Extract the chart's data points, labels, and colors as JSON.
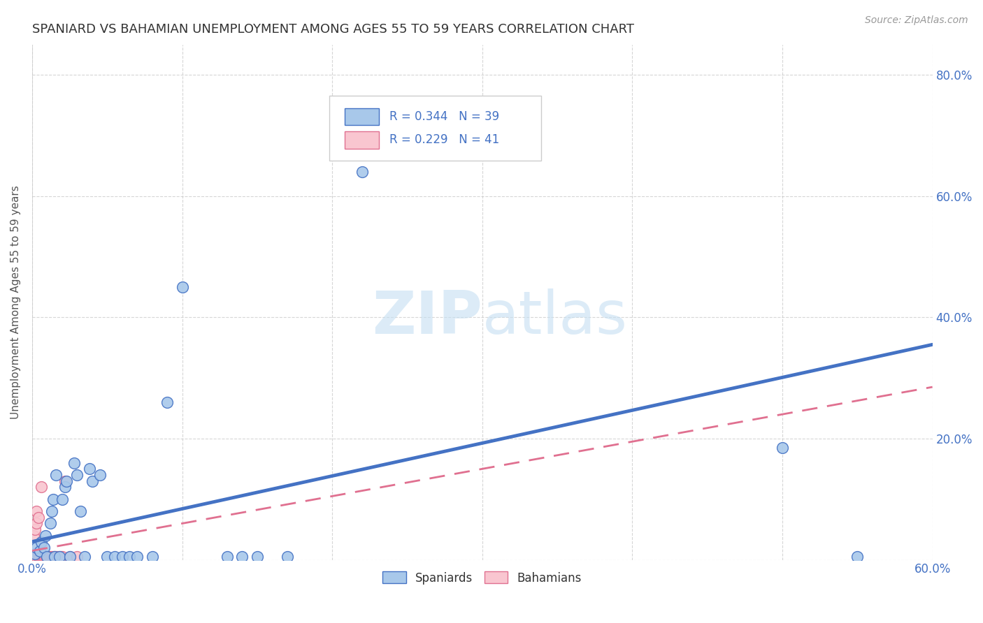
{
  "title": "SPANIARD VS BAHAMIAN UNEMPLOYMENT AMONG AGES 55 TO 59 YEARS CORRELATION CHART",
  "source": "Source: ZipAtlas.com",
  "ylabel": "Unemployment Among Ages 55 to 59 years",
  "xlim": [
    0.0,
    0.6
  ],
  "ylim": [
    0.0,
    0.85
  ],
  "xtick_positions": [
    0.0,
    0.1,
    0.2,
    0.3,
    0.4,
    0.5,
    0.6
  ],
  "xtick_labels": [
    "0.0%",
    "",
    "",
    "",
    "",
    "",
    "60.0%"
  ],
  "ytick_positions": [
    0.0,
    0.2,
    0.4,
    0.6,
    0.8
  ],
  "ytick_labels_right": [
    "",
    "20.0%",
    "40.0%",
    "60.0%",
    "80.0%"
  ],
  "spaniards": {
    "R": 0.344,
    "N": 39,
    "color": "#a8c8ea",
    "edge_color": "#4472c4",
    "label": "Spaniards",
    "points": [
      [
        0.002,
        0.01
      ],
      [
        0.003,
        0.02
      ],
      [
        0.005,
        0.015
      ],
      [
        0.006,
        0.03
      ],
      [
        0.008,
        0.02
      ],
      [
        0.009,
        0.04
      ],
      [
        0.01,
        0.005
      ],
      [
        0.012,
        0.06
      ],
      [
        0.013,
        0.08
      ],
      [
        0.014,
        0.1
      ],
      [
        0.015,
        0.005
      ],
      [
        0.016,
        0.14
      ],
      [
        0.018,
        0.005
      ],
      [
        0.02,
        0.1
      ],
      [
        0.022,
        0.12
      ],
      [
        0.023,
        0.13
      ],
      [
        0.025,
        0.005
      ],
      [
        0.028,
        0.16
      ],
      [
        0.03,
        0.14
      ],
      [
        0.032,
        0.08
      ],
      [
        0.035,
        0.005
      ],
      [
        0.038,
        0.15
      ],
      [
        0.04,
        0.13
      ],
      [
        0.045,
        0.14
      ],
      [
        0.05,
        0.005
      ],
      [
        0.055,
        0.005
      ],
      [
        0.06,
        0.005
      ],
      [
        0.065,
        0.005
      ],
      [
        0.07,
        0.005
      ],
      [
        0.08,
        0.005
      ],
      [
        0.09,
        0.26
      ],
      [
        0.1,
        0.45
      ],
      [
        0.13,
        0.005
      ],
      [
        0.14,
        0.005
      ],
      [
        0.15,
        0.005
      ],
      [
        0.17,
        0.005
      ],
      [
        0.22,
        0.64
      ],
      [
        0.5,
        0.185
      ],
      [
        0.55,
        0.005
      ]
    ],
    "trend_x": [
      0.0,
      0.6
    ],
    "trend_y": [
      0.03,
      0.355
    ]
  },
  "bahamians": {
    "R": 0.229,
    "N": 41,
    "color": "#f9c6d0",
    "edge_color": "#e07090",
    "label": "Bahamians",
    "points": [
      [
        0.0,
        0.005
      ],
      [
        0.0,
        0.005
      ],
      [
        0.001,
        0.005
      ],
      [
        0.001,
        0.005
      ],
      [
        0.001,
        0.04
      ],
      [
        0.002,
        0.005
      ],
      [
        0.002,
        0.005
      ],
      [
        0.002,
        0.05
      ],
      [
        0.003,
        0.005
      ],
      [
        0.003,
        0.005
      ],
      [
        0.003,
        0.06
      ],
      [
        0.003,
        0.08
      ],
      [
        0.004,
        0.005
      ],
      [
        0.004,
        0.005
      ],
      [
        0.004,
        0.07
      ],
      [
        0.005,
        0.005
      ],
      [
        0.005,
        0.005
      ],
      [
        0.006,
        0.005
      ],
      [
        0.006,
        0.12
      ],
      [
        0.007,
        0.005
      ],
      [
        0.007,
        0.005
      ],
      [
        0.008,
        0.005
      ],
      [
        0.008,
        0.005
      ],
      [
        0.009,
        0.005
      ],
      [
        0.01,
        0.005
      ],
      [
        0.01,
        0.005
      ],
      [
        0.01,
        0.005
      ],
      [
        0.011,
        0.005
      ],
      [
        0.012,
        0.005
      ],
      [
        0.013,
        0.005
      ],
      [
        0.014,
        0.005
      ],
      [
        0.015,
        0.005
      ],
      [
        0.015,
        0.005
      ],
      [
        0.016,
        0.005
      ],
      [
        0.017,
        0.005
      ],
      [
        0.018,
        0.005
      ],
      [
        0.019,
        0.005
      ],
      [
        0.02,
        0.005
      ],
      [
        0.022,
        0.13
      ],
      [
        0.025,
        0.005
      ],
      [
        0.03,
        0.005
      ]
    ],
    "trend_x": [
      0.0,
      0.6
    ],
    "trend_y": [
      0.015,
      0.285
    ]
  },
  "watermark_zip": "ZIP",
  "watermark_atlas": "atlas",
  "background_color": "#ffffff",
  "grid_color": "#cccccc",
  "title_color": "#333333",
  "axis_color": "#4472c4",
  "legend_color": "#4472c4",
  "source_text": "Source: ZipAtlas.com"
}
